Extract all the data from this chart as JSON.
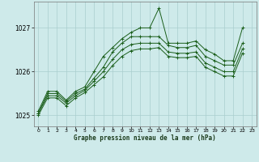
{
  "title": "Graphe pression niveau de la mer (hPa)",
  "bg_color": "#ceeaea",
  "grid_color": "#aacece",
  "line_color": "#1a5e1a",
  "xlim": [
    -0.5,
    23.5
  ],
  "ylim": [
    1024.75,
    1027.6
  ],
  "yticks": [
    1025,
    1026,
    1027
  ],
  "xticks": [
    0,
    1,
    2,
    3,
    4,
    5,
    6,
    7,
    8,
    9,
    10,
    11,
    12,
    13,
    14,
    15,
    16,
    17,
    18,
    19,
    20,
    21,
    22,
    23
  ],
  "line1": [
    1025.1,
    1025.55,
    1025.55,
    1025.35,
    1025.55,
    1025.65,
    1026.0,
    1026.35,
    1026.55,
    1026.75,
    1026.9,
    1027.0,
    1027.0,
    1027.45,
    1026.65,
    1026.65,
    1026.65,
    1026.7,
    1026.5,
    1026.4,
    1026.25,
    1026.25,
    1027.0,
    null
  ],
  "line2": [
    1025.05,
    1025.5,
    1025.5,
    1025.32,
    1025.5,
    1025.6,
    1025.85,
    1026.1,
    1026.45,
    1026.65,
    1026.8,
    1026.8,
    1026.8,
    1026.8,
    1026.6,
    1026.55,
    1026.55,
    1026.6,
    1026.35,
    1026.25,
    1026.15,
    1026.15,
    1026.65,
    null
  ],
  "line3": [
    1025.05,
    1025.45,
    1025.45,
    1025.28,
    1025.45,
    1025.57,
    1025.78,
    1026.0,
    1026.28,
    1026.5,
    1026.62,
    1026.65,
    1026.65,
    1026.65,
    1026.45,
    1026.42,
    1026.42,
    1026.45,
    1026.2,
    1026.1,
    1026.0,
    1026.0,
    1026.52,
    null
  ],
  "line4": [
    1025.0,
    1025.4,
    1025.4,
    1025.22,
    1025.4,
    1025.52,
    1025.7,
    1025.88,
    1026.14,
    1026.35,
    1026.48,
    1026.52,
    1026.52,
    1026.55,
    1026.35,
    1026.32,
    1026.32,
    1026.35,
    1026.1,
    1026.0,
    1025.9,
    1025.9,
    1026.42,
    null
  ]
}
